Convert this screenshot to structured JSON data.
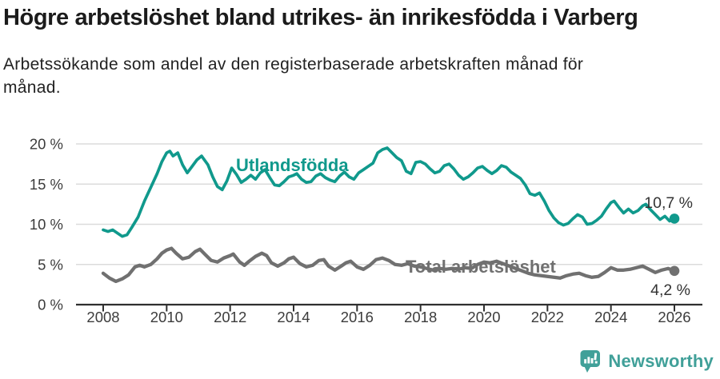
{
  "header": {
    "title": "Högre arbetslöshet bland utrikes- än inrikesfödda i Varberg",
    "subtitle_line1": "Arbetssökande som andel av den registerbaserade arbetskraften månad för",
    "subtitle_line2": "månad."
  },
  "footer": {
    "brand": "Newsworthy"
  },
  "colors": {
    "foreign_born_line": "#10998c",
    "total_line": "#707070",
    "axis": "#2f2f2f",
    "grid": "#dbdbdb",
    "tick_text": "#3c3c3c",
    "annotation_text": "#333333",
    "brand_teal": "#41a099"
  },
  "chart_data": {
    "type": "line",
    "title": "Högre arbetslöshet bland utrikes- än inrikesfödda i Varberg",
    "subtitle": "Arbetssökande som andel av den registerbaserade arbetskraften månad för månad.",
    "xlabel": "",
    "ylabel": "",
    "ylim": [
      0,
      20
    ],
    "xlim": [
      2007.1,
      2026.9
    ],
    "grid": "horizontal",
    "legend_position": "inline-labels",
    "y_ticks": [
      {
        "value": 0,
        "label": "0 %"
      },
      {
        "value": 5,
        "label": "5 %"
      },
      {
        "value": 10,
        "label": "10 %"
      },
      {
        "value": 15,
        "label": "15 %"
      },
      {
        "value": 20,
        "label": "20 %"
      }
    ],
    "x_ticks": [
      {
        "value": 2008,
        "label": "2008"
      },
      {
        "value": 2010,
        "label": "2010"
      },
      {
        "value": 2012,
        "label": "2012"
      },
      {
        "value": 2014,
        "label": "2014"
      },
      {
        "value": 2016,
        "label": "2016"
      },
      {
        "value": 2018,
        "label": "2018"
      },
      {
        "value": 2020,
        "label": "2020"
      },
      {
        "value": 2022,
        "label": "2022"
      },
      {
        "value": 2024,
        "label": "2024"
      },
      {
        "value": 2026,
        "label": "2026"
      }
    ],
    "series": [
      {
        "name": "Utlandsfödda",
        "color": "#10998c",
        "end_value_label": "10,7 %",
        "points": [
          [
            2008.0,
            9.3
          ],
          [
            2008.15,
            9.1
          ],
          [
            2008.3,
            9.3
          ],
          [
            2008.45,
            8.9
          ],
          [
            2008.6,
            8.5
          ],
          [
            2008.75,
            8.7
          ],
          [
            2008.9,
            9.6
          ],
          [
            2009.1,
            10.9
          ],
          [
            2009.3,
            12.9
          ],
          [
            2009.5,
            14.6
          ],
          [
            2009.7,
            16.3
          ],
          [
            2009.85,
            17.8
          ],
          [
            2010.0,
            18.9
          ],
          [
            2010.1,
            19.1
          ],
          [
            2010.2,
            18.5
          ],
          [
            2010.35,
            18.9
          ],
          [
            2010.5,
            17.4
          ],
          [
            2010.65,
            16.4
          ],
          [
            2010.8,
            17.2
          ],
          [
            2010.95,
            18.0
          ],
          [
            2011.1,
            18.5
          ],
          [
            2011.3,
            17.4
          ],
          [
            2011.45,
            15.9
          ],
          [
            2011.6,
            14.7
          ],
          [
            2011.75,
            14.3
          ],
          [
            2011.9,
            15.4
          ],
          [
            2012.05,
            17.0
          ],
          [
            2012.2,
            16.2
          ],
          [
            2012.35,
            15.2
          ],
          [
            2012.5,
            15.6
          ],
          [
            2012.65,
            16.1
          ],
          [
            2012.8,
            15.6
          ],
          [
            2012.95,
            16.4
          ],
          [
            2013.1,
            16.8
          ],
          [
            2013.25,
            15.8
          ],
          [
            2013.4,
            14.9
          ],
          [
            2013.55,
            14.8
          ],
          [
            2013.7,
            15.3
          ],
          [
            2013.85,
            15.9
          ],
          [
            2014.0,
            16.1
          ],
          [
            2014.1,
            16.3
          ],
          [
            2014.25,
            15.6
          ],
          [
            2014.4,
            15.2
          ],
          [
            2014.55,
            15.3
          ],
          [
            2014.7,
            16.0
          ],
          [
            2014.85,
            16.3
          ],
          [
            2015.0,
            15.8
          ],
          [
            2015.15,
            15.5
          ],
          [
            2015.3,
            15.3
          ],
          [
            2015.45,
            16.0
          ],
          [
            2015.6,
            16.5
          ],
          [
            2015.75,
            15.9
          ],
          [
            2015.9,
            15.6
          ],
          [
            2016.05,
            16.4
          ],
          [
            2016.2,
            16.8
          ],
          [
            2016.35,
            17.2
          ],
          [
            2016.5,
            17.6
          ],
          [
            2016.65,
            18.9
          ],
          [
            2016.8,
            19.3
          ],
          [
            2016.95,
            19.5
          ],
          [
            2017.1,
            18.9
          ],
          [
            2017.25,
            18.3
          ],
          [
            2017.4,
            17.9
          ],
          [
            2017.55,
            16.6
          ],
          [
            2017.7,
            16.3
          ],
          [
            2017.85,
            17.7
          ],
          [
            2018.0,
            17.8
          ],
          [
            2018.15,
            17.5
          ],
          [
            2018.3,
            16.9
          ],
          [
            2018.45,
            16.4
          ],
          [
            2018.6,
            16.6
          ],
          [
            2018.75,
            17.3
          ],
          [
            2018.9,
            17.5
          ],
          [
            2019.05,
            16.9
          ],
          [
            2019.2,
            16.1
          ],
          [
            2019.35,
            15.6
          ],
          [
            2019.5,
            15.9
          ],
          [
            2019.65,
            16.4
          ],
          [
            2019.8,
            17.0
          ],
          [
            2019.95,
            17.2
          ],
          [
            2020.1,
            16.7
          ],
          [
            2020.25,
            16.3
          ],
          [
            2020.4,
            16.7
          ],
          [
            2020.55,
            17.3
          ],
          [
            2020.7,
            17.1
          ],
          [
            2020.85,
            16.5
          ],
          [
            2021.0,
            16.1
          ],
          [
            2021.15,
            15.7
          ],
          [
            2021.3,
            14.9
          ],
          [
            2021.45,
            13.8
          ],
          [
            2021.6,
            13.6
          ],
          [
            2021.75,
            13.9
          ],
          [
            2021.9,
            12.9
          ],
          [
            2022.05,
            11.7
          ],
          [
            2022.2,
            10.8
          ],
          [
            2022.35,
            10.2
          ],
          [
            2022.5,
            9.9
          ],
          [
            2022.65,
            10.1
          ],
          [
            2022.8,
            10.7
          ],
          [
            2022.95,
            11.2
          ],
          [
            2023.1,
            10.9
          ],
          [
            2023.25,
            10.0
          ],
          [
            2023.4,
            10.1
          ],
          [
            2023.55,
            10.5
          ],
          [
            2023.7,
            11.0
          ],
          [
            2023.85,
            11.9
          ],
          [
            2024.0,
            12.7
          ],
          [
            2024.1,
            12.9
          ],
          [
            2024.25,
            12.1
          ],
          [
            2024.4,
            11.4
          ],
          [
            2024.55,
            11.9
          ],
          [
            2024.7,
            11.4
          ],
          [
            2024.85,
            11.7
          ],
          [
            2025.0,
            12.3
          ],
          [
            2025.1,
            12.5
          ],
          [
            2025.25,
            11.8
          ],
          [
            2025.4,
            11.2
          ],
          [
            2025.55,
            10.6
          ],
          [
            2025.7,
            11.0
          ],
          [
            2025.85,
            10.4
          ],
          [
            2026.0,
            10.7
          ]
        ]
      },
      {
        "name": "Total arbetslöshet",
        "color": "#707070",
        "end_value_label": "4,2 %",
        "points": [
          [
            2008.0,
            3.9
          ],
          [
            2008.2,
            3.3
          ],
          [
            2008.4,
            2.9
          ],
          [
            2008.6,
            3.2
          ],
          [
            2008.8,
            3.7
          ],
          [
            2009.0,
            4.7
          ],
          [
            2009.15,
            4.9
          ],
          [
            2009.3,
            4.7
          ],
          [
            2009.5,
            5.0
          ],
          [
            2009.7,
            5.7
          ],
          [
            2009.85,
            6.4
          ],
          [
            2010.0,
            6.8
          ],
          [
            2010.15,
            7.0
          ],
          [
            2010.3,
            6.4
          ],
          [
            2010.5,
            5.7
          ],
          [
            2010.7,
            5.9
          ],
          [
            2010.9,
            6.6
          ],
          [
            2011.05,
            6.9
          ],
          [
            2011.2,
            6.3
          ],
          [
            2011.4,
            5.5
          ],
          [
            2011.6,
            5.3
          ],
          [
            2011.8,
            5.8
          ],
          [
            2012.0,
            6.1
          ],
          [
            2012.1,
            6.3
          ],
          [
            2012.3,
            5.3
          ],
          [
            2012.45,
            4.9
          ],
          [
            2012.6,
            5.4
          ],
          [
            2012.8,
            6.0
          ],
          [
            2013.0,
            6.4
          ],
          [
            2013.15,
            6.1
          ],
          [
            2013.3,
            5.2
          ],
          [
            2013.5,
            4.8
          ],
          [
            2013.7,
            5.2
          ],
          [
            2013.85,
            5.7
          ],
          [
            2014.0,
            5.9
          ],
          [
            2014.2,
            5.1
          ],
          [
            2014.4,
            4.7
          ],
          [
            2014.6,
            4.9
          ],
          [
            2014.8,
            5.5
          ],
          [
            2014.95,
            5.6
          ],
          [
            2015.1,
            4.8
          ],
          [
            2015.3,
            4.3
          ],
          [
            2015.5,
            4.8
          ],
          [
            2015.65,
            5.2
          ],
          [
            2015.8,
            5.4
          ],
          [
            2016.0,
            4.7
          ],
          [
            2016.2,
            4.4
          ],
          [
            2016.4,
            4.9
          ],
          [
            2016.6,
            5.6
          ],
          [
            2016.8,
            5.8
          ],
          [
            2017.0,
            5.5
          ],
          [
            2017.2,
            5.0
          ],
          [
            2017.4,
            4.9
          ],
          [
            2017.6,
            5.1
          ],
          [
            2017.8,
            4.8
          ],
          [
            2018.0,
            4.7
          ],
          [
            2018.2,
            4.5
          ],
          [
            2018.4,
            4.3
          ],
          [
            2018.6,
            4.5
          ],
          [
            2018.8,
            4.4
          ],
          [
            2019.0,
            4.5
          ],
          [
            2019.2,
            4.4
          ],
          [
            2019.4,
            4.6
          ],
          [
            2019.6,
            4.5
          ],
          [
            2019.8,
            5.0
          ],
          [
            2020.0,
            5.3
          ],
          [
            2020.2,
            5.2
          ],
          [
            2020.4,
            5.4
          ],
          [
            2020.6,
            5.1
          ],
          [
            2020.8,
            4.8
          ],
          [
            2021.0,
            4.5
          ],
          [
            2021.2,
            4.2
          ],
          [
            2021.4,
            3.9
          ],
          [
            2021.6,
            3.7
          ],
          [
            2021.8,
            3.6
          ],
          [
            2022.0,
            3.5
          ],
          [
            2022.2,
            3.4
          ],
          [
            2022.4,
            3.3
          ],
          [
            2022.6,
            3.6
          ],
          [
            2022.8,
            3.8
          ],
          [
            2023.0,
            3.9
          ],
          [
            2023.2,
            3.6
          ],
          [
            2023.4,
            3.4
          ],
          [
            2023.6,
            3.5
          ],
          [
            2023.8,
            4.0
          ],
          [
            2024.0,
            4.6
          ],
          [
            2024.2,
            4.3
          ],
          [
            2024.4,
            4.3
          ],
          [
            2024.6,
            4.4
          ],
          [
            2024.8,
            4.6
          ],
          [
            2025.0,
            4.8
          ],
          [
            2025.2,
            4.4
          ],
          [
            2025.4,
            4.0
          ],
          [
            2025.6,
            4.3
          ],
          [
            2025.8,
            4.5
          ],
          [
            2026.0,
            4.2
          ]
        ]
      }
    ]
  }
}
